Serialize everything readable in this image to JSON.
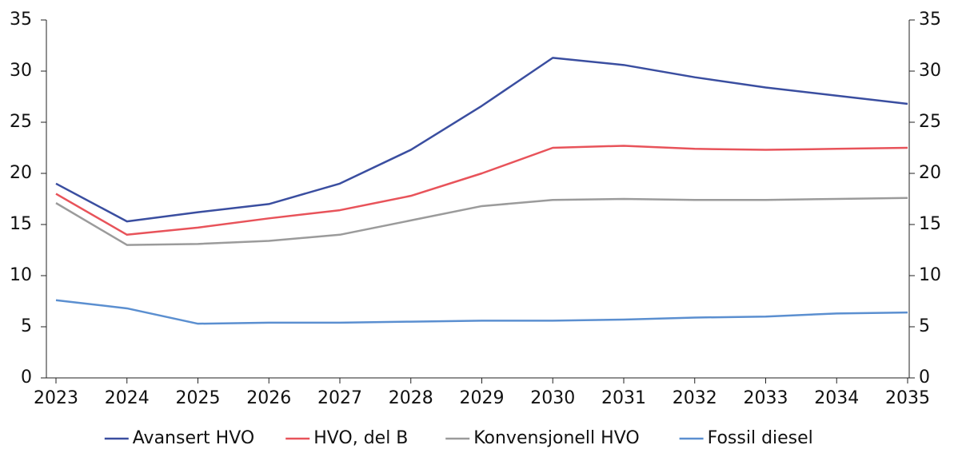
{
  "chart_data": {
    "type": "line",
    "categories": [
      "2023",
      "2024",
      "2025",
      "2026",
      "2027",
      "2028",
      "2029",
      "2030",
      "2031",
      "2032",
      "2033",
      "2034",
      "2035"
    ],
    "series": [
      {
        "name": "Avansert HVO",
        "color": "#3a4ea0",
        "values": [
          19.0,
          15.3,
          16.2,
          17.0,
          19.0,
          22.3,
          26.6,
          31.3,
          30.6,
          29.4,
          28.4,
          27.6,
          26.8
        ]
      },
      {
        "name": "HVO, del B",
        "color": "#e8535a",
        "values": [
          18.0,
          14.0,
          14.7,
          15.6,
          16.4,
          17.8,
          20.0,
          22.5,
          22.7,
          22.4,
          22.3,
          22.4,
          22.5
        ]
      },
      {
        "name": "Konvensjonell HVO",
        "color": "#9b9b9b",
        "values": [
          17.1,
          13.0,
          13.1,
          13.4,
          14.0,
          15.4,
          16.8,
          17.4,
          17.5,
          17.4,
          17.4,
          17.5,
          17.6
        ]
      },
      {
        "name": "Fossil diesel",
        "color": "#5b8fd0",
        "values": [
          7.6,
          6.8,
          5.3,
          5.4,
          5.4,
          5.5,
          5.6,
          5.6,
          5.7,
          5.9,
          6.0,
          6.3,
          6.4
        ]
      }
    ],
    "ylim": [
      0,
      35
    ],
    "yticks": [
      0,
      5,
      10,
      15,
      20,
      25,
      30,
      35
    ],
    "y2lim": [
      0,
      35
    ],
    "y2ticks": [
      0,
      5,
      10,
      15,
      20,
      25,
      30,
      35
    ],
    "grid": false,
    "legend": "bottom"
  }
}
